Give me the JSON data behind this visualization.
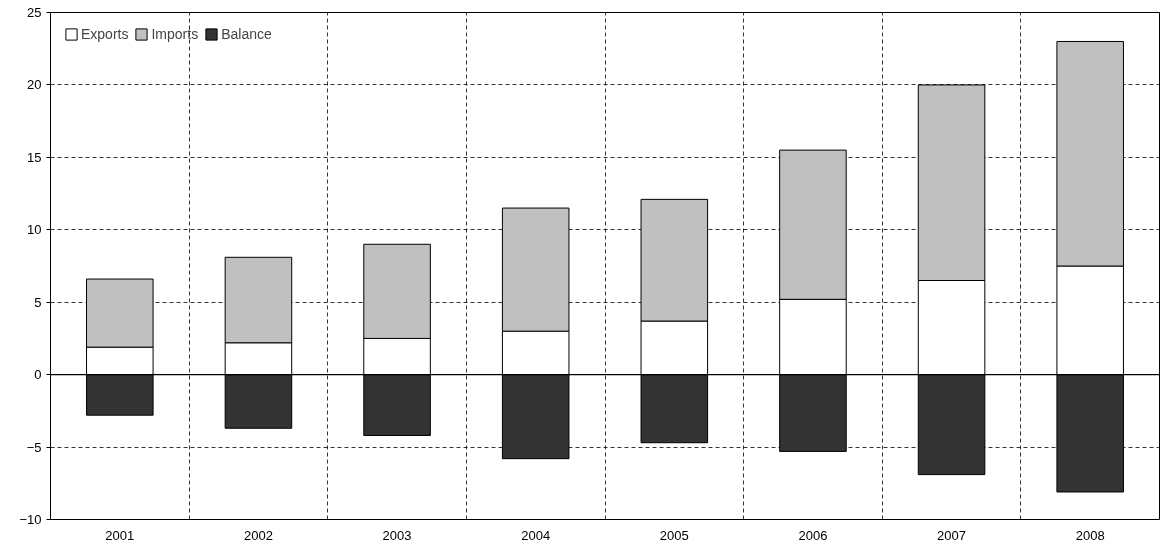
{
  "chart_data": {
    "type": "bar",
    "stacked": true,
    "categories": [
      "2001",
      "2002",
      "2003",
      "2004",
      "2005",
      "2006",
      "2007",
      "2008"
    ],
    "series": [
      {
        "name": "Exports",
        "color": "#ffffff",
        "values": [
          1.9,
          2.2,
          2.5,
          3.0,
          3.7,
          5.2,
          6.5,
          7.5
        ]
      },
      {
        "name": "Imports",
        "color": "#c0c0c0",
        "values": [
          4.7,
          5.9,
          6.5,
          8.5,
          8.4,
          10.3,
          13.5,
          15.5
        ]
      },
      {
        "name": "Balance",
        "color": "#333333",
        "values": [
          -2.8,
          -3.7,
          -4.2,
          -5.8,
          -4.7,
          -5.3,
          -6.9,
          -8.1
        ]
      }
    ],
    "ylim": [
      -10,
      25
    ],
    "yticks": [
      -10,
      -5,
      0,
      5,
      10,
      15,
      20,
      25
    ],
    "grid": true,
    "legend": "top left"
  }
}
